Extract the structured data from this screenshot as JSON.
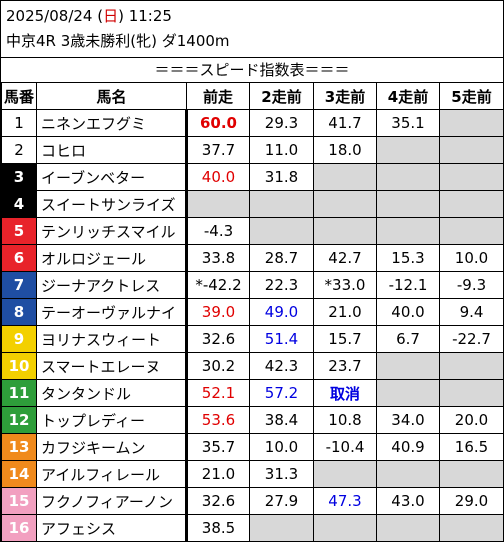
{
  "header": {
    "date_prefix": "2025/08/24 (",
    "weekday": "日",
    "date_suffix": ") 11:25",
    "race": "中京4R 3歳未勝利(牝) ダ1400m"
  },
  "title": "＝＝＝スピード指数表＝＝＝",
  "columns": [
    "馬番",
    "馬名",
    "前走",
    "2走前",
    "3走前",
    "4走前",
    "5走前"
  ],
  "colors": {
    "frame1": "#ffffff",
    "frame2": "#000000",
    "frame3": "#e8232a",
    "frame4": "#1f4ea3",
    "frame5": "#f3d000",
    "frame6": "#2e9e3a",
    "frame7": "#f08a1c",
    "frame8": "#f2a0c0",
    "highlight_red": "#e00000",
    "highlight_blue": "#0000e0",
    "empty_cell": "#d8d8d8"
  },
  "rows": [
    {
      "num": "1",
      "name": "ニネンエフグミ",
      "frame": 1,
      "v": [
        "60.0",
        "29.3",
        "41.7",
        "35.1",
        ""
      ],
      "s": [
        "red-big",
        "",
        "",
        "",
        ""
      ]
    },
    {
      "num": "2",
      "name": "コヒロ",
      "frame": 1,
      "v": [
        "37.7",
        "11.0",
        "18.0",
        "",
        ""
      ],
      "s": [
        "",
        "",
        "",
        "",
        ""
      ]
    },
    {
      "num": "3",
      "name": "イーブンベター",
      "frame": 2,
      "v": [
        "40.0",
        "31.8",
        "",
        "",
        ""
      ],
      "s": [
        "red",
        "",
        "",
        "",
        ""
      ]
    },
    {
      "num": "4",
      "name": "スイートサンライズ",
      "frame": 2,
      "v": [
        "",
        "",
        "",
        "",
        ""
      ],
      "s": [
        "",
        "",
        "",
        "",
        ""
      ]
    },
    {
      "num": "5",
      "name": "テンリッチスマイル",
      "frame": 3,
      "v": [
        "-4.3",
        "",
        "",
        "",
        ""
      ],
      "s": [
        "",
        "",
        "",
        "",
        ""
      ]
    },
    {
      "num": "6",
      "name": "オルロジェール",
      "frame": 3,
      "v": [
        "33.8",
        "28.7",
        "42.7",
        "15.3",
        "10.0"
      ],
      "s": [
        "",
        "",
        "",
        "",
        ""
      ]
    },
    {
      "num": "7",
      "name": "ジーナアクトレス",
      "frame": 4,
      "v": [
        "*-42.2",
        "22.3",
        "*33.0",
        "-12.1",
        "-9.3"
      ],
      "s": [
        "",
        "",
        "",
        "",
        ""
      ]
    },
    {
      "num": "8",
      "name": "テーオーヴァルナイ",
      "frame": 4,
      "v": [
        "39.0",
        "49.0",
        "21.0",
        "40.0",
        "9.4"
      ],
      "s": [
        "red",
        "blue",
        "",
        "",
        ""
      ]
    },
    {
      "num": "9",
      "name": "ヨリナスウィート",
      "frame": 5,
      "v": [
        "32.6",
        "51.4",
        "15.7",
        "6.7",
        "-22.7"
      ],
      "s": [
        "",
        "blue",
        "",
        "",
        ""
      ]
    },
    {
      "num": "10",
      "name": "スマートエレーヌ",
      "frame": 5,
      "v": [
        "30.2",
        "42.3",
        "23.7",
        "",
        ""
      ],
      "s": [
        "",
        "",
        "",
        "",
        ""
      ]
    },
    {
      "num": "11",
      "name": "タンタンドル",
      "frame": 6,
      "v": [
        "52.1",
        "57.2",
        "取消",
        "",
        ""
      ],
      "s": [
        "red",
        "blue",
        "blue-bold",
        "",
        ""
      ]
    },
    {
      "num": "12",
      "name": "トップレディー",
      "frame": 6,
      "v": [
        "53.6",
        "38.4",
        "10.8",
        "34.0",
        "20.0"
      ],
      "s": [
        "red",
        "",
        "",
        "",
        ""
      ]
    },
    {
      "num": "13",
      "name": "カフジキームン",
      "frame": 7,
      "v": [
        "35.7",
        "10.0",
        "-10.4",
        "40.9",
        "16.5"
      ],
      "s": [
        "",
        "",
        "",
        "",
        ""
      ]
    },
    {
      "num": "14",
      "name": "アイルフィレール",
      "frame": 7,
      "v": [
        "21.0",
        "31.3",
        "",
        "",
        ""
      ],
      "s": [
        "",
        "",
        "",
        "",
        ""
      ]
    },
    {
      "num": "15",
      "name": "フクノフィアーノン",
      "frame": 8,
      "v": [
        "32.6",
        "27.9",
        "47.3",
        "43.0",
        "29.0"
      ],
      "s": [
        "",
        "",
        "blue",
        "",
        ""
      ]
    },
    {
      "num": "16",
      "name": "アフェシス",
      "frame": 8,
      "v": [
        "38.5",
        "",
        "",
        "",
        ""
      ],
      "s": [
        "",
        "",
        "",
        "",
        ""
      ]
    }
  ]
}
